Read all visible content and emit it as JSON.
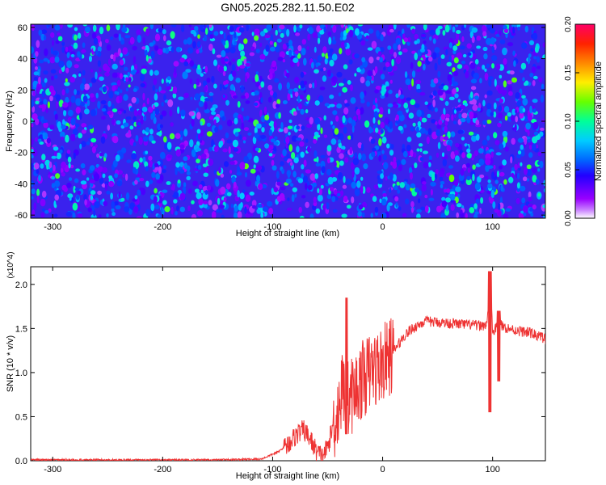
{
  "page": {
    "title": "GN05.2025.282.11.50.E02"
  },
  "chart_data": [
    {
      "type": "heatmap",
      "title": "GN05.2025.282.11.50.E02",
      "xlabel": "Height of straight line (km)",
      "ylabel": "Frequency (Hz)",
      "xlim": [
        -320,
        148
      ],
      "ylim": [
        -62,
        62
      ],
      "xticks": [
        -300,
        -200,
        -100,
        0,
        100
      ],
      "yticks": [
        -60,
        -40,
        -20,
        0,
        20,
        40,
        60
      ],
      "grid": false,
      "colorbar": {
        "label": "Normalized spectral amplitude",
        "range": [
          0.0,
          0.2
        ],
        "ticks": [
          "0.00",
          "0.05",
          "0.10",
          "0.15",
          "0.20"
        ],
        "colors": [
          "#ffffff",
          "#9900ff",
          "#2200ff",
          "#0066ff",
          "#00ccff",
          "#00ff99",
          "#66ff00",
          "#ffee00",
          "#ff8800",
          "#ff2200",
          "#ff0066"
        ]
      },
      "field": {
        "description_of_values": "speckled noise field, mostly 0.02-0.08 with sparse spots up to ~0.12",
        "typical_min": 0.02,
        "typical_max": 0.12
      }
    },
    {
      "type": "line",
      "xlabel": "Height of straight line (km)",
      "ylabel": "SNR (10 * v/v)",
      "y_multiplier": "(x10^4)",
      "xlim": [
        -320,
        148
      ],
      "ylim": [
        0,
        2.2
      ],
      "xticks": [
        -300,
        -200,
        -100,
        0,
        100
      ],
      "yticks": [
        0.0,
        0.5,
        1.0,
        1.5,
        2.0
      ],
      "color": "#ee3333",
      "grid": false,
      "series": [
        {
          "x": [
            -320,
            -250,
            -200,
            -150,
            -110,
            -95,
            -85,
            -78,
            -72,
            -66,
            -60,
            -55,
            -50,
            -45,
            -40,
            -36,
            -32,
            -28,
            -24,
            -20,
            -16,
            -12,
            -8,
            -4,
            0,
            4,
            8,
            12,
            16,
            20,
            25,
            30,
            35,
            40,
            50,
            60,
            70,
            80,
            90,
            95,
            98,
            100,
            103,
            106,
            110,
            115,
            120,
            125,
            130,
            135,
            140,
            145,
            148
          ],
          "y": [
            0.01,
            0.01,
            0.01,
            0.01,
            0.02,
            0.1,
            0.2,
            0.3,
            0.35,
            0.25,
            0.1,
            0.05,
            0.15,
            0.4,
            0.6,
            0.85,
            0.7,
            0.75,
            0.8,
            0.9,
            0.95,
            1.0,
            1.05,
            1.05,
            1.1,
            1.15,
            1.2,
            1.28,
            1.35,
            1.42,
            1.48,
            1.52,
            1.56,
            1.58,
            1.57,
            1.56,
            1.55,
            1.54,
            1.53,
            1.55,
            2.1,
            1.45,
            1.5,
            1.55,
            1.52,
            1.5,
            1.48,
            1.47,
            1.46,
            1.45,
            1.42,
            1.4,
            1.38
          ]
        }
      ]
    }
  ]
}
